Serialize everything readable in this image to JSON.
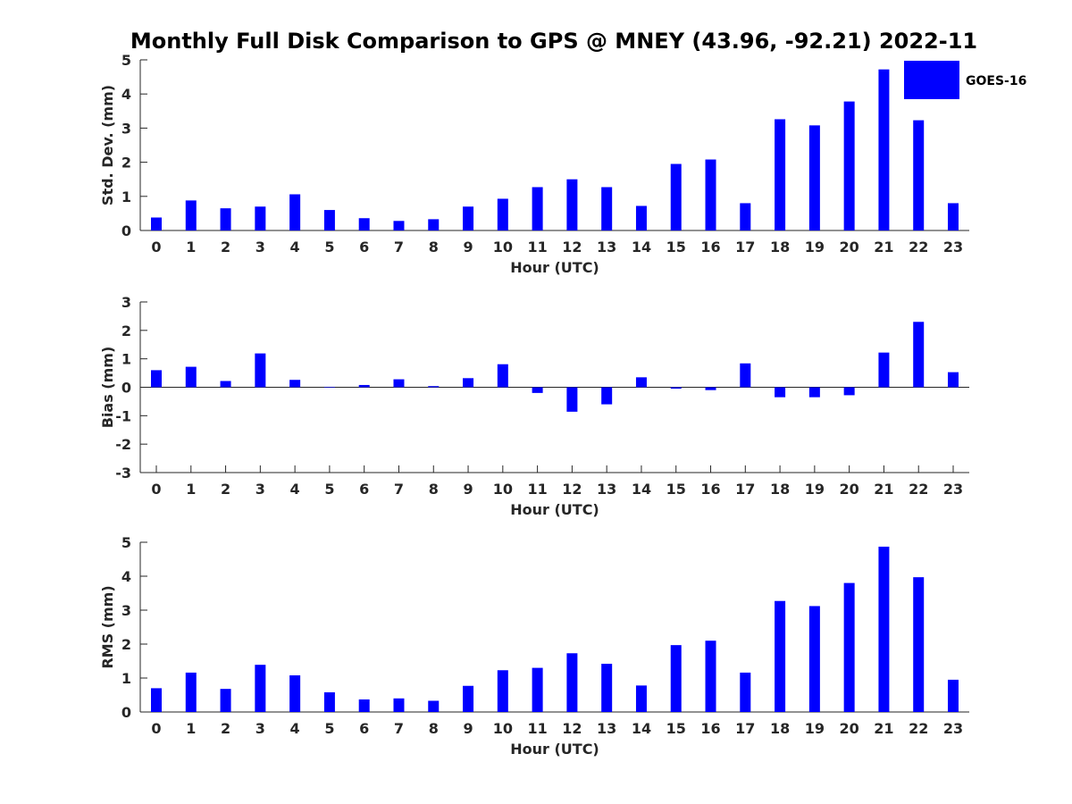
{
  "chart_data": {
    "title": "Monthly Full Disk Comparison to GPS @ MNEY (43.96, -92.21) 2022-11",
    "type": "bar",
    "bar_color": "#0000ff",
    "legend": {
      "label": "GOES-16",
      "placement": "top-right"
    },
    "categories": [
      "0",
      "1",
      "2",
      "3",
      "4",
      "5",
      "6",
      "7",
      "8",
      "9",
      "10",
      "11",
      "12",
      "13",
      "14",
      "15",
      "16",
      "17",
      "18",
      "19",
      "20",
      "21",
      "22",
      "23"
    ],
    "panels": [
      {
        "ylabel": "Std. Dev. (mm)",
        "xlabel": "Hour (UTC)",
        "ylim": [
          0,
          5
        ],
        "yticks": [
          0,
          1,
          2,
          3,
          4,
          5
        ],
        "values": [
          0.38,
          0.88,
          0.65,
          0.7,
          1.06,
          0.6,
          0.36,
          0.28,
          0.33,
          0.7,
          0.93,
          1.27,
          1.5,
          1.27,
          0.72,
          1.95,
          2.08,
          0.8,
          3.26,
          3.08,
          3.78,
          4.72,
          3.23,
          0.8
        ]
      },
      {
        "ylabel": "Bias (mm)",
        "xlabel": "Hour (UTC)",
        "ylim": [
          -3,
          3
        ],
        "yticks": [
          -3,
          -2,
          -1,
          0,
          1,
          2,
          3
        ],
        "values": [
          0.6,
          0.72,
          0.22,
          1.19,
          0.26,
          0.01,
          0.08,
          0.28,
          0.04,
          0.32,
          0.81,
          -0.2,
          -0.86,
          -0.6,
          0.35,
          -0.05,
          -0.1,
          0.84,
          -0.35,
          -0.35,
          -0.28,
          1.22,
          2.3,
          0.53
        ]
      },
      {
        "ylabel": "RMS (mm)",
        "xlabel": "Hour (UTC)",
        "ylim": [
          0,
          5
        ],
        "yticks": [
          0,
          1,
          2,
          3,
          4,
          5
        ],
        "values": [
          0.7,
          1.16,
          0.68,
          1.39,
          1.08,
          0.58,
          0.37,
          0.4,
          0.33,
          0.77,
          1.23,
          1.3,
          1.73,
          1.42,
          0.78,
          1.97,
          2.1,
          1.16,
          3.27,
          3.12,
          3.8,
          4.87,
          3.97,
          0.95
        ]
      }
    ]
  }
}
